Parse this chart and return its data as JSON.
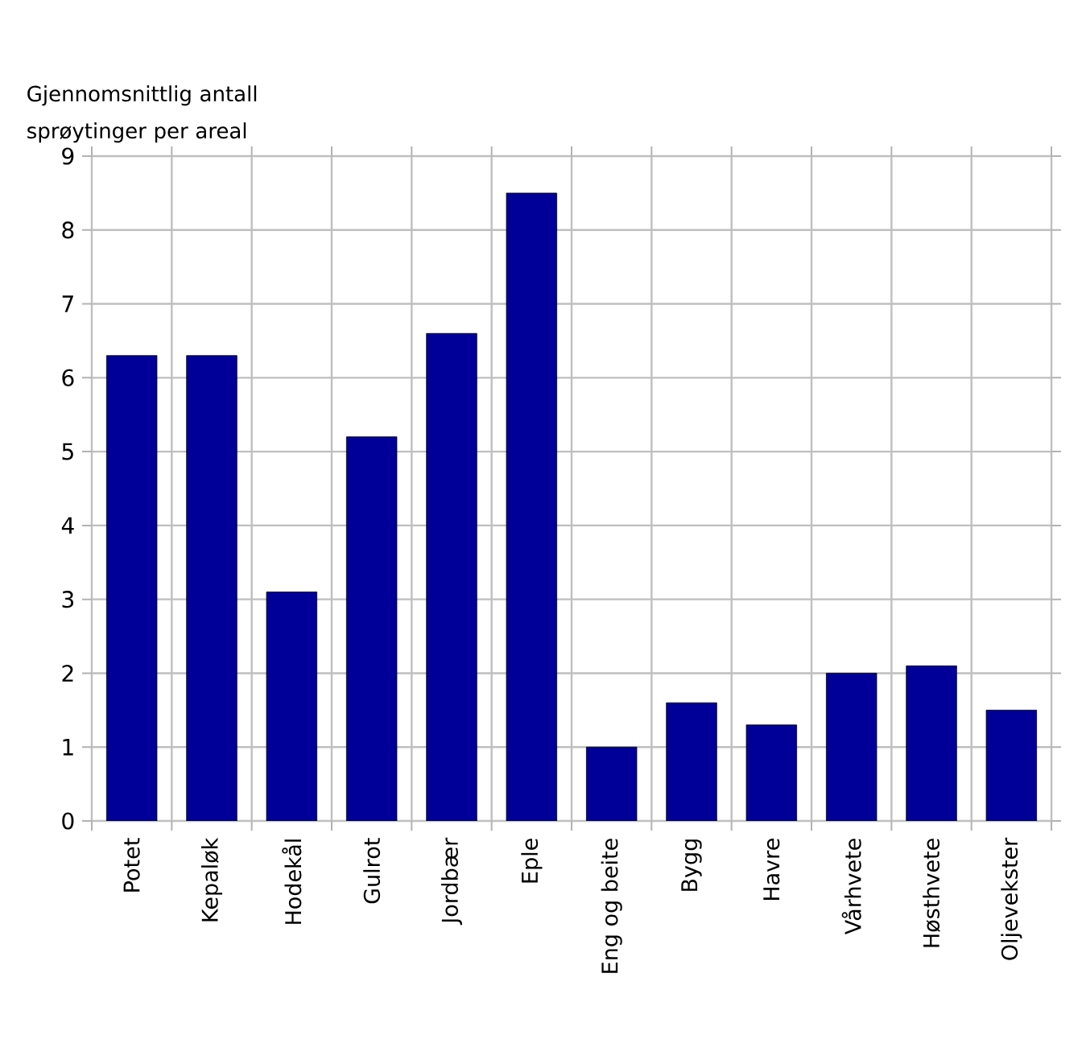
{
  "chart_data": {
    "type": "bar",
    "ylabel": "Gjennomsnittlig antall sprøytinger per areal",
    "categories": [
      "Potet",
      "Kepaløk",
      "Hodekål",
      "Gulrot",
      "Jordbær",
      "Eple",
      "Eng og beite",
      "Bygg",
      "Havre",
      "Vårhvete",
      "Høsthvete",
      "Oljevekster"
    ],
    "values": [
      6.3,
      6.3,
      3.1,
      5.2,
      6.6,
      8.5,
      1.0,
      1.6,
      1.3,
      2.0,
      2.1,
      1.5
    ],
    "color": "#000099",
    "ylim": [
      0,
      9
    ],
    "yticks": [
      0,
      1,
      2,
      3,
      4,
      5,
      6,
      7,
      8,
      9
    ],
    "grid": true
  }
}
